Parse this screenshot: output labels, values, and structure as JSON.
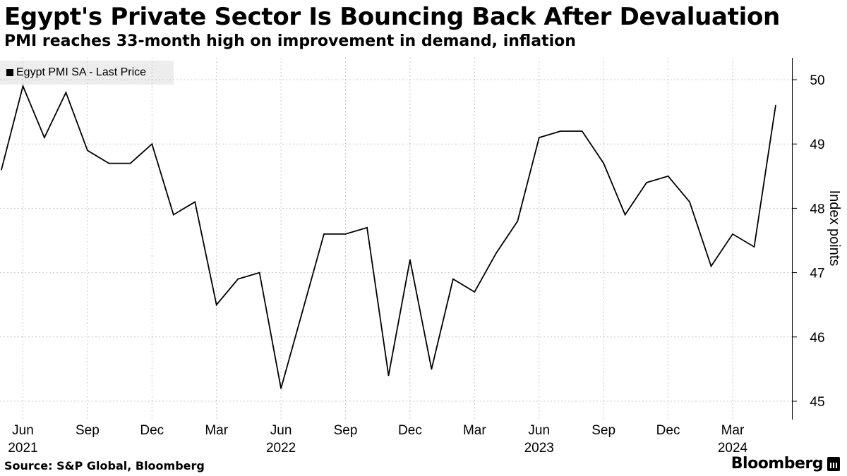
{
  "header": {
    "title": "Egypt's Private Sector Is Bouncing Back After Devaluation",
    "subtitle": "PMI reaches 33-month high on improvement in demand, inflation"
  },
  "legend": {
    "label": "Egypt PMI SA - Last Price"
  },
  "footer": {
    "source": "Source: S&P Global, Bloomberg",
    "brand": "Bloomberg"
  },
  "chart_data": {
    "type": "line",
    "title": "Egypt's Private Sector Is Bouncing Back After Devaluation",
    "ylabel": "Index points",
    "xlabel": "",
    "ylim": [
      44.9,
      50.4
    ],
    "yticks": [
      45,
      46,
      47,
      48,
      49,
      50
    ],
    "grid": true,
    "legend_position": "top-left",
    "series": [
      {
        "name": "Egypt PMI SA - Last Price",
        "x": [
          "May 2021",
          "Jun 2021",
          "Jul 2021",
          "Aug 2021",
          "Sep 2021",
          "Oct 2021",
          "Nov 2021",
          "Dec 2021",
          "Jan 2022",
          "Feb 2022",
          "Mar 2022",
          "Apr 2022",
          "May 2022",
          "Jun 2022",
          "Jul 2022",
          "Aug 2022",
          "Sep 2022",
          "Oct 2022",
          "Nov 2022",
          "Dec 2022",
          "Jan 2023",
          "Feb 2023",
          "Mar 2023",
          "Apr 2023",
          "May 2023",
          "Jun 2023",
          "Jul 2023",
          "Aug 2023",
          "Sep 2023",
          "Oct 2023",
          "Nov 2023",
          "Dec 2023",
          "Jan 2024",
          "Feb 2024",
          "Mar 2024",
          "Apr 2024",
          "May 2024"
        ],
        "values": [
          48.6,
          49.9,
          49.1,
          49.8,
          48.9,
          48.7,
          48.7,
          49.0,
          47.9,
          48.1,
          46.5,
          46.9,
          47.0,
          45.2,
          46.4,
          47.6,
          47.6,
          47.7,
          45.4,
          47.2,
          45.5,
          46.9,
          46.7,
          47.3,
          47.8,
          49.1,
          49.2,
          49.2,
          48.7,
          47.9,
          48.4,
          48.5,
          48.1,
          47.1,
          47.6,
          47.4,
          49.6
        ]
      }
    ],
    "x_tick_labels": [
      {
        "index": 1,
        "month": "Jun",
        "year": "2021"
      },
      {
        "index": 4,
        "month": "Sep",
        "year": ""
      },
      {
        "index": 7,
        "month": "Dec",
        "year": ""
      },
      {
        "index": 10,
        "month": "Mar",
        "year": ""
      },
      {
        "index": 13,
        "month": "Jun",
        "year": "2022"
      },
      {
        "index": 16,
        "month": "Sep",
        "year": ""
      },
      {
        "index": 19,
        "month": "Dec",
        "year": ""
      },
      {
        "index": 22,
        "month": "Mar",
        "year": ""
      },
      {
        "index": 25,
        "month": "Jun",
        "year": "2023"
      },
      {
        "index": 28,
        "month": "Sep",
        "year": ""
      },
      {
        "index": 31,
        "month": "Dec",
        "year": ""
      },
      {
        "index": 34,
        "month": "Mar",
        "year": "2024"
      }
    ]
  }
}
